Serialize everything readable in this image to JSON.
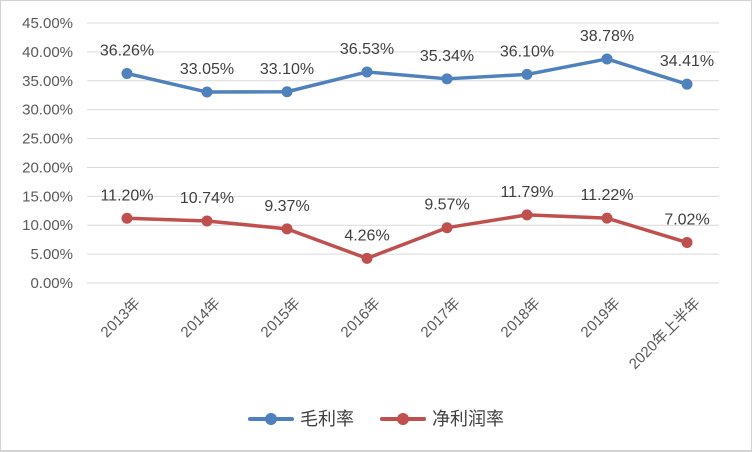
{
  "chart_data": {
    "type": "line",
    "title": "",
    "categories": [
      "2013年",
      "2014年",
      "2015年",
      "2016年",
      "2017年",
      "2018年",
      "2019年",
      "2020年上半年"
    ],
    "series": [
      {
        "name": "毛利率",
        "color": "#4F81BD",
        "values": [
          36.26,
          33.05,
          33.1,
          36.53,
          35.34,
          36.1,
          38.78,
          34.41
        ],
        "labels": [
          "36.26%",
          "33.05%",
          "33.10%",
          "36.53%",
          "35.34%",
          "36.10%",
          "38.78%",
          "34.41%"
        ]
      },
      {
        "name": "净利润率",
        "color": "#C0504D",
        "values": [
          11.2,
          10.74,
          9.37,
          4.26,
          9.57,
          11.79,
          11.22,
          7.02
        ],
        "labels": [
          "11.20%",
          "10.74%",
          "9.37%",
          "4.26%",
          "9.57%",
          "11.79%",
          "11.22%",
          "7.02%"
        ]
      }
    ],
    "y_axis": {
      "min": 0,
      "max": 45,
      "step": 5,
      "tick_labels": [
        "0.00%",
        "5.00%",
        "10.00%",
        "15.00%",
        "20.00%",
        "25.00%",
        "30.00%",
        "35.00%",
        "40.00%",
        "45.00%"
      ]
    },
    "xlabel": "",
    "ylabel": "",
    "grid": true,
    "legend_position": "bottom",
    "legend": [
      "毛利率",
      "净利润率"
    ],
    "colors": {
      "gridline": "#D9D9D9",
      "axis_text": "#595959",
      "data_label": "#3F3F3F",
      "border": "#D3D3D3",
      "background": "#FFFFFF"
    }
  }
}
